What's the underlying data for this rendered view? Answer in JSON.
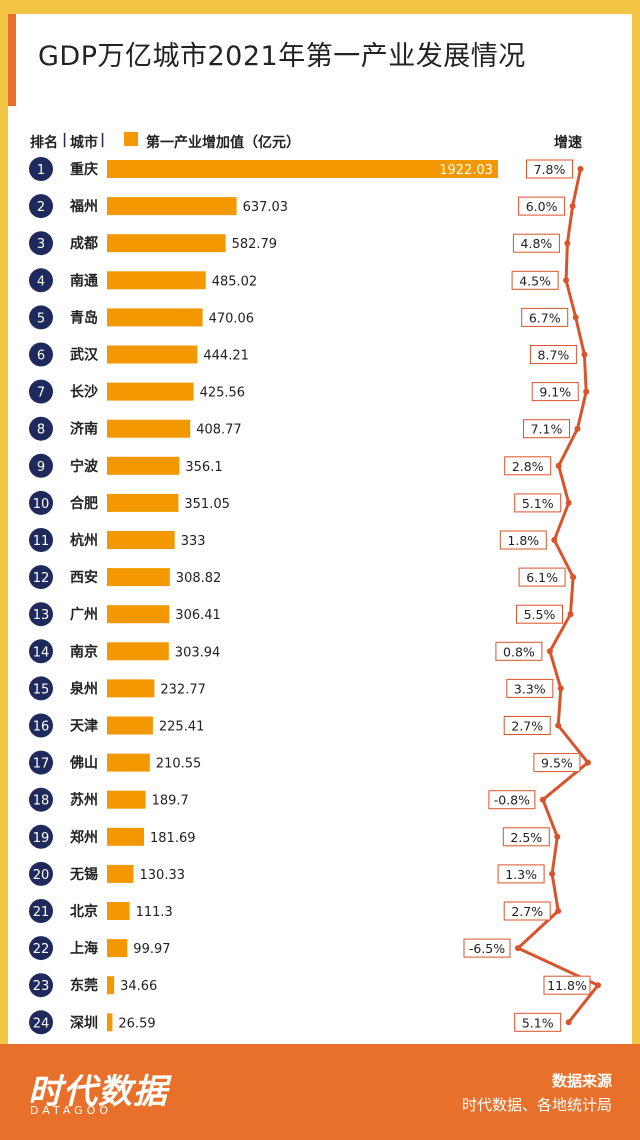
{
  "title": "GDP万亿城市2021年第一产业发展情况",
  "headers": {
    "rank": "排名",
    "city": "城市",
    "legend": "第一产业增加值（亿元）",
    "growth": "增速"
  },
  "colors": {
    "bar": "#f39800",
    "rank_circle": "#1f2a5c",
    "growth_line": "#d9532b",
    "footer": "#e8702a",
    "frame": "#f3c544"
  },
  "chart_data": {
    "type": "bar",
    "orientation": "horizontal",
    "rows": [
      {
        "rank": "1",
        "city": "重庆",
        "value": 1922.03,
        "label": "1922.03",
        "growth": 7.8,
        "growth_label": "7.8%"
      },
      {
        "rank": "2",
        "city": "福州",
        "value": 637.03,
        "label": "637.03",
        "growth": 6.0,
        "growth_label": "6.0%"
      },
      {
        "rank": "3",
        "city": "成都",
        "value": 582.79,
        "label": "582.79",
        "growth": 4.8,
        "growth_label": "4.8%"
      },
      {
        "rank": "4",
        "city": "南通",
        "value": 485.02,
        "label": "485.02",
        "growth": 4.5,
        "growth_label": "4.5%"
      },
      {
        "rank": "5",
        "city": "青岛",
        "value": 470.06,
        "label": "470.06",
        "growth": 6.7,
        "growth_label": "6.7%"
      },
      {
        "rank": "6",
        "city": "武汉",
        "value": 444.21,
        "label": "444.21",
        "growth": 8.7,
        "growth_label": "8.7%"
      },
      {
        "rank": "7",
        "city": "长沙",
        "value": 425.56,
        "label": "425.56",
        "growth": 9.1,
        "growth_label": "9.1%"
      },
      {
        "rank": "8",
        "city": "济南",
        "value": 408.77,
        "label": "408.77",
        "growth": 7.1,
        "growth_label": "7.1%"
      },
      {
        "rank": "9",
        "city": "宁波",
        "value": 356.1,
        "label": "356.1",
        "growth": 2.8,
        "growth_label": "2.8%"
      },
      {
        "rank": "10",
        "city": "合肥",
        "value": 351.05,
        "label": "351.05",
        "growth": 5.1,
        "growth_label": "5.1%"
      },
      {
        "rank": "11",
        "city": "杭州",
        "value": 333,
        "label": "333",
        "growth": 1.8,
        "growth_label": "1.8%"
      },
      {
        "rank": "12",
        "city": "西安",
        "value": 308.82,
        "label": "308.82",
        "growth": 6.1,
        "growth_label": "6.1%"
      },
      {
        "rank": "13",
        "city": "广州",
        "value": 306.41,
        "label": "306.41",
        "growth": 5.5,
        "growth_label": "5.5%"
      },
      {
        "rank": "14",
        "city": "南京",
        "value": 303.94,
        "label": "303.94",
        "growth": 0.8,
        "growth_label": "0.8%"
      },
      {
        "rank": "15",
        "city": "泉州",
        "value": 232.77,
        "label": "232.77",
        "growth": 3.3,
        "growth_label": "3.3%"
      },
      {
        "rank": "16",
        "city": "天津",
        "value": 225.41,
        "label": "225.41",
        "growth": 2.7,
        "growth_label": "2.7%"
      },
      {
        "rank": "17",
        "city": "佛山",
        "value": 210.55,
        "label": "210.55",
        "growth": 9.5,
        "growth_label": "9.5%"
      },
      {
        "rank": "18",
        "city": "苏州",
        "value": 189.7,
        "label": "189.7",
        "growth": -0.8,
        "growth_label": "-0.8%"
      },
      {
        "rank": "19",
        "city": "郑州",
        "value": 181.69,
        "label": "181.69",
        "growth": 2.5,
        "growth_label": "2.5%"
      },
      {
        "rank": "20",
        "city": "无锡",
        "value": 130.33,
        "label": "130.33",
        "growth": 1.3,
        "growth_label": "1.3%"
      },
      {
        "rank": "21",
        "city": "北京",
        "value": 111.3,
        "label": "111.3",
        "growth": 2.7,
        "growth_label": "2.7%"
      },
      {
        "rank": "22",
        "city": "上海",
        "value": 99.97,
        "label": "99.97",
        "growth": -6.5,
        "growth_label": "-6.5%"
      },
      {
        "rank": "23",
        "city": "东莞",
        "value": 34.66,
        "label": "34.66",
        "growth": 11.8,
        "growth_label": "11.8%"
      },
      {
        "rank": "24",
        "city": "深圳",
        "value": 26.59,
        "label": "26.59",
        "growth": 5.1,
        "growth_label": "5.1%"
      }
    ]
  },
  "footer": {
    "logo": "时代数据",
    "logo_sub": "DATAGOO",
    "source_title": "数据来源",
    "source_text": "时代数据、各地统计局"
  }
}
